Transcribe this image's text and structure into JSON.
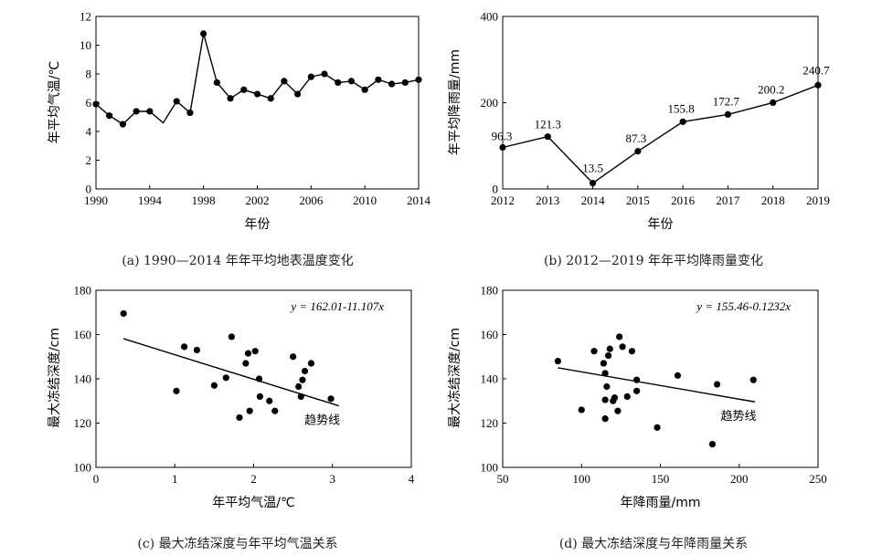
{
  "chart_data": [
    {
      "type": "line",
      "caption": "(a) 1990—2014 年年平均地表温度变化",
      "xlabel": "年份",
      "ylabel": "年平均气温/℃",
      "xlim": [
        1990,
        2014
      ],
      "ylim": [
        0,
        12
      ],
      "xticks": [
        1990,
        1994,
        1998,
        2002,
        2006,
        2010,
        2014
      ],
      "yticks": [
        0,
        2,
        4,
        6,
        8,
        10,
        12
      ],
      "x": [
        1990,
        1991,
        1992,
        1993,
        1994,
        1995,
        1996,
        1997,
        1998,
        1999,
        2000,
        2001,
        2002,
        2003,
        2004,
        2005,
        2006,
        2007,
        2008,
        2009,
        2010,
        2011,
        2012,
        2013,
        2014
      ],
      "values": [
        5.9,
        5.1,
        4.5,
        5.4,
        5.4,
        4.6,
        6.1,
        5.3,
        10.8,
        7.4,
        6.3,
        6.9,
        6.6,
        6.3,
        7.5,
        6.6,
        7.8,
        8.0,
        7.4,
        7.5,
        6.9,
        7.6,
        7.3,
        7.4,
        7.6
      ],
      "no_marker_x": [
        1995
      ],
      "grid": false
    },
    {
      "type": "line",
      "caption": "(b) 2012—2019 年年平均降雨量变化",
      "xlabel": "年份",
      "ylabel": "年平均降雨量/mm",
      "xlim": [
        2012,
        2019
      ],
      "ylim": [
        0,
        400
      ],
      "xticks": [
        2012,
        2013,
        2014,
        2015,
        2016,
        2017,
        2018,
        2019
      ],
      "yticks": [
        0,
        200,
        400
      ],
      "x": [
        2012,
        2013,
        2014,
        2015,
        2016,
        2017,
        2018,
        2019
      ],
      "values": [
        96.3,
        121.3,
        13.5,
        87.3,
        155.8,
        172.7,
        200.2,
        240.7
      ],
      "data_labels": [
        "96.3",
        "121.3",
        "13.5",
        "87.3",
        "155.8",
        "172.7",
        "200.2",
        "240.7"
      ],
      "grid": false
    },
    {
      "type": "scatter",
      "caption": "(c) 最大冻结深度与年平均气温关系",
      "xlabel": "年平均气温/℃",
      "ylabel": "最大冻结深度/cm",
      "xlim": [
        0,
        4
      ],
      "ylim": [
        100,
        180
      ],
      "xticks": [
        0,
        1,
        2,
        3,
        4
      ],
      "yticks": [
        100,
        120,
        140,
        160,
        180
      ],
      "points": [
        [
          0.35,
          169.5
        ],
        [
          1.02,
          134.5
        ],
        [
          1.12,
          154.5
        ],
        [
          1.28,
          153.0
        ],
        [
          1.5,
          137.0
        ],
        [
          1.65,
          140.5
        ],
        [
          1.72,
          159.0
        ],
        [
          1.82,
          122.5
        ],
        [
          1.9,
          147.0
        ],
        [
          1.93,
          151.5
        ],
        [
          1.95,
          125.5
        ],
        [
          2.02,
          152.5
        ],
        [
          2.07,
          140.0
        ],
        [
          2.08,
          132.0
        ],
        [
          2.2,
          130.0
        ],
        [
          2.27,
          125.5
        ],
        [
          2.5,
          150.0
        ],
        [
          2.57,
          136.5
        ],
        [
          2.6,
          132.0
        ],
        [
          2.62,
          139.5
        ],
        [
          2.65,
          143.5
        ],
        [
          2.73,
          147.0
        ],
        [
          2.98,
          131.0
        ]
      ],
      "trendline": {
        "equation": "y = 162.01-11.107x",
        "label": "趋势线",
        "intercept": 162.01,
        "slope": -11.107,
        "x_range": [
          0.35,
          3.08
        ]
      },
      "grid": false
    },
    {
      "type": "scatter",
      "caption": "(d) 最大冻结深度与年降雨量关系",
      "xlabel": "年降雨量/mm",
      "ylabel": "最大冻结深度/cm",
      "xlim": [
        50,
        250
      ],
      "ylim": [
        100,
        180
      ],
      "xticks": [
        50,
        100,
        150,
        200,
        250
      ],
      "yticks": [
        100,
        120,
        140,
        160,
        180
      ],
      "points": [
        [
          85,
          148.0
        ],
        [
          100,
          126.0
        ],
        [
          108,
          152.5
        ],
        [
          114,
          147.0
        ],
        [
          115,
          142.5
        ],
        [
          115,
          130.5
        ],
        [
          115,
          122.0
        ],
        [
          116,
          136.5
        ],
        [
          117,
          150.5
        ],
        [
          118,
          153.5
        ],
        [
          120,
          130.0
        ],
        [
          121,
          131.5
        ],
        [
          123,
          125.5
        ],
        [
          124,
          159.0
        ],
        [
          126,
          154.5
        ],
        [
          129,
          132.0
        ],
        [
          132,
          152.5
        ],
        [
          135,
          134.5
        ],
        [
          135,
          139.5
        ],
        [
          148,
          118.0
        ],
        [
          161,
          141.5
        ],
        [
          183,
          110.5
        ],
        [
          186,
          137.5
        ],
        [
          209,
          139.5
        ]
      ],
      "trendline": {
        "equation": "y = 155.46-0.1232x",
        "label": "趋势线",
        "intercept": 155.46,
        "slope": -0.1232,
        "x_range": [
          85,
          210
        ]
      },
      "grid": false
    }
  ]
}
